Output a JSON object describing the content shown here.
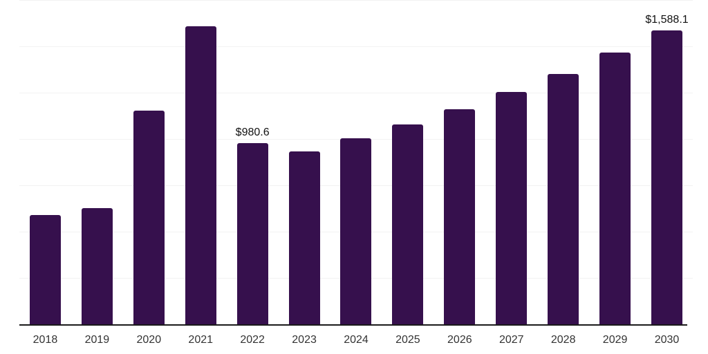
{
  "chart_data": {
    "type": "bar",
    "categories": [
      "2018",
      "2019",
      "2020",
      "2021",
      "2022",
      "2023",
      "2024",
      "2025",
      "2026",
      "2027",
      "2028",
      "2029",
      "2030"
    ],
    "values": [
      593,
      630,
      1156,
      1613,
      980.6,
      936,
      1007,
      1082,
      1164,
      1257,
      1354,
      1470,
      1588.1
    ],
    "data_labels": {
      "2022": "$980.6",
      "2030": "$1,588.1"
    },
    "xlabel": "",
    "ylabel": "",
    "ylim": [
      0,
      1750
    ],
    "gridline_step": 250,
    "grid": true,
    "legend_position": "none",
    "y_axis_tick_labels_visible": false
  },
  "style": {
    "bar_color": "#36104D",
    "grid_color": "#F2F2F2",
    "axis_line_color": "#1A1A1A",
    "tick_label_color": "#333333",
    "value_label_color": "#111111",
    "background_color": "#FFFFFF"
  }
}
